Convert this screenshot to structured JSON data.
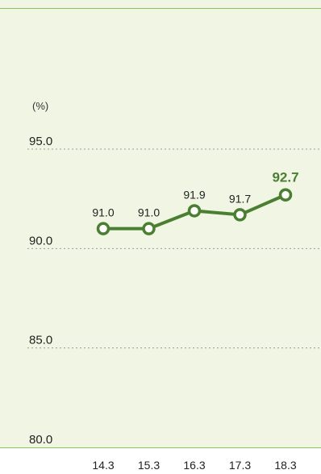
{
  "chart_data": {
    "type": "line",
    "unit": "(%)",
    "categories": [
      "14.3",
      "15.3",
      "16.3",
      "17.3",
      "18.3"
    ],
    "values": [
      91.0,
      91.0,
      91.9,
      91.7,
      92.7
    ],
    "value_labels": [
      "91.0",
      "91.0",
      "91.9",
      "91.7",
      "92.7"
    ],
    "ylim": [
      80.0,
      95.0
    ],
    "yticks": [
      "95.0",
      "90.0",
      "85.0",
      "80.0"
    ],
    "grid": true,
    "colors": {
      "line": "#4a7f32",
      "highlight": "#4a7f32",
      "background": "#f0f6e3"
    }
  }
}
